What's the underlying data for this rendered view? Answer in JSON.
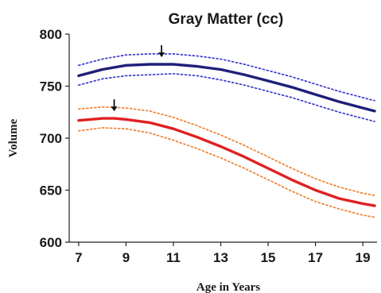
{
  "chart_data": {
    "type": "line",
    "title": "Gray Matter (cc)",
    "xlabel": "Age in Years",
    "ylabel": "Volume",
    "xlim": [
      6.6,
      19.6
    ],
    "ylim": [
      600,
      800
    ],
    "x_ticks": [
      "7",
      "9",
      "11",
      "13",
      "15",
      "17",
      "19"
    ],
    "y_ticks": [
      "600",
      "650",
      "700",
      "750",
      "800"
    ],
    "grid": false,
    "series": [
      {
        "color": "#1f1f7a",
        "style": "solid",
        "x": [
          7,
          8,
          9,
          10,
          10.5,
          11,
          12,
          13,
          14,
          15,
          16,
          17,
          18,
          19,
          19.5
        ],
        "values": [
          760,
          766,
          770,
          771,
          771,
          771,
          769,
          766,
          761,
          755,
          749,
          742,
          735,
          729,
          726
        ]
      },
      {
        "color": "#3a3acc",
        "style": "dotted",
        "x": [
          7,
          8,
          9,
          10,
          11,
          12,
          13,
          14,
          15,
          16,
          17,
          18,
          19,
          19.5
        ],
        "values": [
          770,
          776,
          780,
          781,
          781,
          779,
          776,
          771,
          765,
          759,
          752,
          745,
          739,
          736
        ]
      },
      {
        "color": "#3a3acc",
        "style": "dotted",
        "x": [
          7,
          8,
          9,
          10,
          11,
          12,
          13,
          14,
          15,
          16,
          17,
          18,
          19,
          19.5
        ],
        "values": [
          751,
          757,
          760,
          761,
          762,
          760,
          756,
          751,
          745,
          739,
          732,
          725,
          719,
          716
        ]
      },
      {
        "color": "#e02020",
        "style": "solid",
        "x": [
          7,
          7.5,
          8,
          8.5,
          9,
          10,
          11,
          12,
          13,
          14,
          15,
          16,
          17,
          18,
          19,
          19.5
        ],
        "values": [
          717,
          718,
          719,
          719,
          718,
          715,
          709,
          701,
          692,
          682,
          671,
          660,
          650,
          642,
          637,
          635
        ]
      },
      {
        "color": "#f08030",
        "style": "dotted",
        "x": [
          7,
          8,
          9,
          10,
          11,
          12,
          13,
          14,
          15,
          16,
          17,
          18,
          19,
          19.5
        ],
        "values": [
          728,
          730,
          729,
          726,
          720,
          712,
          703,
          693,
          682,
          671,
          661,
          653,
          647,
          645
        ]
      },
      {
        "color": "#f08030",
        "style": "dotted",
        "x": [
          7,
          8,
          9,
          10,
          11,
          12,
          13,
          14,
          15,
          16,
          17,
          18,
          19,
          19.5
        ],
        "values": [
          707,
          710,
          709,
          705,
          698,
          690,
          681,
          671,
          660,
          649,
          639,
          632,
          626,
          624
        ]
      }
    ],
    "annotations": [
      {
        "type": "arrow-down",
        "x": 10.5,
        "y": 771
      },
      {
        "type": "arrow-down",
        "x": 8.5,
        "y": 719
      }
    ]
  }
}
